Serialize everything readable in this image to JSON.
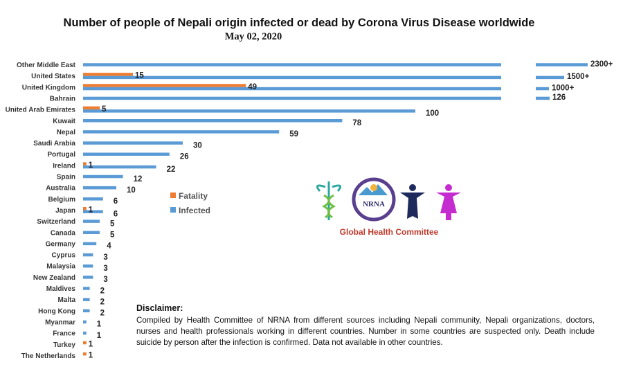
{
  "chart_data": {
    "type": "bar",
    "orientation": "horizontal",
    "title": "Number of people of Nepali origin infected or dead by Corona Virus Disease worldwide",
    "subtitle": "May 02, 2020",
    "categories": [
      "Other Middle East",
      "United States",
      "United Kingdom",
      "Bahrain",
      "United Arab Emirates",
      "Kuwait",
      "Nepal",
      "Saudi Arabia",
      "Portugal",
      "Ireland",
      "Spain",
      "Australia",
      "Belgium",
      "Japan",
      "Switzerland",
      "Canada",
      "Germany",
      "Cyprus",
      "Malaysia",
      "New Zealand",
      "Maldives",
      "Malta",
      "Hong Kong",
      "Myanmar",
      "France",
      "Turkey",
      "The Netherlands"
    ],
    "series": [
      {
        "name": "Fatality",
        "color": "#ED7D31",
        "values": [
          null,
          15,
          49,
          null,
          5,
          null,
          null,
          null,
          null,
          1,
          null,
          null,
          null,
          1,
          null,
          null,
          null,
          null,
          null,
          null,
          null,
          null,
          null,
          null,
          null,
          1,
          1
        ]
      },
      {
        "name": "Infected",
        "color": "#5B9BD5",
        "values": [
          2300,
          1500,
          1000,
          126,
          100,
          78,
          59,
          30,
          26,
          22,
          12,
          10,
          6,
          6,
          5,
          5,
          4,
          3,
          3,
          3,
          2,
          2,
          2,
          1,
          1,
          null,
          null
        ]
      }
    ],
    "value_labels": {
      "Fatality": [
        "",
        "15",
        "49",
        "",
        "5",
        "",
        "",
        "",
        "",
        "1",
        "",
        "",
        "",
        "1",
        "",
        "",
        "",
        "",
        "",
        "",
        "",
        "",
        "",
        "",
        "",
        "1",
        "1"
      ],
      "Infected": [
        "2300+",
        "1500+",
        "1000+",
        "126",
        "100",
        "78",
        "59",
        "30",
        "26",
        "22",
        "12",
        "10",
        "6",
        "6",
        "5",
        "5",
        "4",
        "3",
        "3",
        "3",
        "2",
        "2",
        "2",
        "1",
        "1",
        "",
        ""
      ]
    },
    "axis_break": true,
    "legend_position": "center-left inside plot",
    "grid": false
  },
  "logo": {
    "badge_text": "NRNA",
    "caption": "Global Health Committee"
  },
  "disclaimer": {
    "heading": "Disclaimer:",
    "body": "Compiled by Health Committee of NRNA from different sources including Nepali community, Nepali organizations, doctors, nurses and health professionals working in different countries. Number in some  countries are suspected only. Death include suicide by person after the infection is confirmed. Data not available in other countries."
  }
}
